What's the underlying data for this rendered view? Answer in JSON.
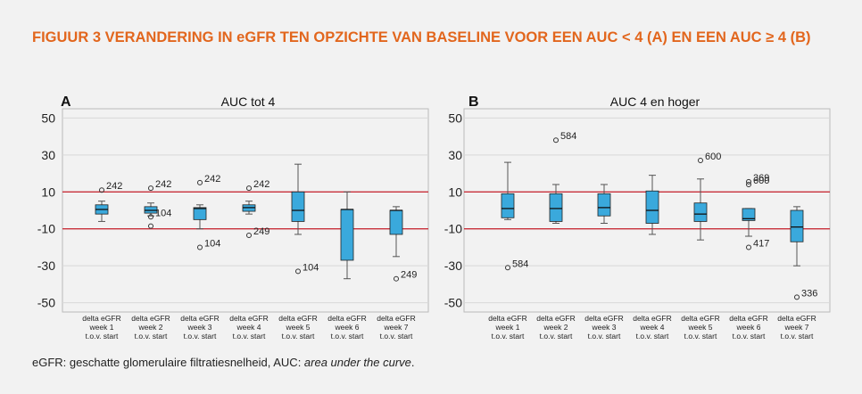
{
  "figure": {
    "title": "FIGUUR 3  VERANDERING IN eGFR TEN OPZICHTE VAN BASELINE VOOR EEN AUC < 4 (A) EN EEN AUC ≥ 4 (B)",
    "footnote_plain": "eGFR: geschatte glomerulaire filtratiesnelheid, AUC: ",
    "footnote_italic": "area under the curve",
    "footnote_end": ".",
    "colors": {
      "title": "#e2661d",
      "box": "#3aa9dc",
      "reference_line": "#c8313b",
      "whisker": "#555555"
    }
  },
  "chart_data": [
    {
      "type": "box",
      "panel": "A",
      "title": "AUC tot 4",
      "ylim": [
        -55,
        55
      ],
      "yticks": [
        50,
        30,
        10,
        -10,
        -30,
        -50
      ],
      "reference_lines": [
        10,
        -10
      ],
      "categories": [
        [
          "delta eGFR",
          "week 1",
          "t.o.v. start"
        ],
        [
          "delta eGFR",
          "week 2",
          "t.o.v. start"
        ],
        [
          "delta eGFR",
          "week 3",
          "t.o.v. start"
        ],
        [
          "delta eGFR",
          "week 4",
          "t.o.v. start"
        ],
        [
          "delta eGFR",
          "week 5",
          "t.o.v. start"
        ],
        [
          "delta eGFR",
          "week 6",
          "t.o.v. start"
        ],
        [
          "delta eGFR",
          "week 7",
          "t.o.v. start"
        ]
      ],
      "boxes": [
        {
          "whisker_low": -6,
          "q1": -2,
          "median": 0.5,
          "q3": 3,
          "whisker_high": 5,
          "outliers": [
            {
              "value": 11,
              "label": "242"
            }
          ]
        },
        {
          "whisker_low": -3,
          "q1": -1.5,
          "median": 0,
          "q3": 2,
          "whisker_high": 4,
          "outliers": [
            {
              "value": 12,
              "label": "242"
            },
            {
              "value": -8.5,
              "label": ""
            },
            {
              "value": -3.5,
              "label": "104"
            }
          ]
        },
        {
          "whisker_low": -10,
          "q1": -5,
          "median": 1,
          "q3": 1.5,
          "whisker_high": 3,
          "outliers": [
            {
              "value": 15,
              "label": "242"
            },
            {
              "value": -20,
              "label": "104"
            }
          ]
        },
        {
          "whisker_low": -2,
          "q1": -0.5,
          "median": 1.5,
          "q3": 3,
          "whisker_high": 5,
          "outliers": [
            {
              "value": 12,
              "label": "242"
            },
            {
              "value": -13.5,
              "label": "249"
            }
          ]
        },
        {
          "whisker_low": -13,
          "q1": -6,
          "median": 0,
          "q3": 10,
          "whisker_high": 25,
          "outliers": [
            {
              "value": -33,
              "label": "104"
            }
          ]
        },
        {
          "whisker_low": -37,
          "q1": -27,
          "median": 0.5,
          "q3": 0.5,
          "whisker_high": 10,
          "outliers": []
        },
        {
          "whisker_low": -25,
          "q1": -13,
          "median": 0,
          "q3": 0,
          "whisker_high": 2,
          "outliers": [
            {
              "value": -37,
              "label": "249"
            }
          ]
        }
      ]
    },
    {
      "type": "box",
      "panel": "B",
      "title": "AUC 4 en hoger",
      "ylim": [
        -55,
        55
      ],
      "yticks": [
        50,
        30,
        10,
        -10,
        -30,
        -50
      ],
      "reference_lines": [
        10,
        -10
      ],
      "categories": [
        [
          "delta eGFR",
          "week 1",
          "t.o.v. start"
        ],
        [
          "delta eGFR",
          "week 2",
          "t.o.v. start"
        ],
        [
          "delta eGFR",
          "week 3",
          "t.o.v. start"
        ],
        [
          "delta eGFR",
          "week 4",
          "t.o.v. start"
        ],
        [
          "delta eGFR",
          "week 5",
          "t.o.v. start"
        ],
        [
          "delta eGFR",
          "week 6",
          "t.o.v. start"
        ],
        [
          "delta eGFR",
          "week 7",
          "t.o.v. start"
        ]
      ],
      "boxes": [
        {
          "whisker_low": -5,
          "q1": -4,
          "median": 1,
          "q3": 9,
          "whisker_high": 26,
          "outliers": [
            {
              "value": -31,
              "label": "584"
            }
          ]
        },
        {
          "whisker_low": -7,
          "q1": -6,
          "median": 1,
          "q3": 9,
          "whisker_high": 14,
          "outliers": [
            {
              "value": 38,
              "label": "584"
            }
          ]
        },
        {
          "whisker_low": -7,
          "q1": -3,
          "median": 1.5,
          "q3": 9,
          "whisker_high": 14,
          "outliers": []
        },
        {
          "whisker_low": -13,
          "q1": -7,
          "median": 0,
          "q3": 10.5,
          "whisker_high": 19,
          "outliers": []
        },
        {
          "whisker_low": -16,
          "q1": -6,
          "median": -2,
          "q3": 4,
          "whisker_high": 17,
          "outliers": [
            {
              "value": 27,
              "label": "600"
            }
          ]
        },
        {
          "whisker_low": -14,
          "q1": -5.5,
          "median": -4.5,
          "q3": 1,
          "whisker_high": 1,
          "outliers": [
            {
              "value": 14,
              "label": "600"
            },
            {
              "value": 15.5,
              "label": "369"
            },
            {
              "value": -20,
              "label": "417"
            }
          ]
        },
        {
          "whisker_low": -30,
          "q1": -17,
          "median": -9,
          "q3": 0,
          "whisker_high": 2,
          "outliers": [
            {
              "value": -47,
              "label": "336"
            }
          ]
        }
      ]
    }
  ]
}
